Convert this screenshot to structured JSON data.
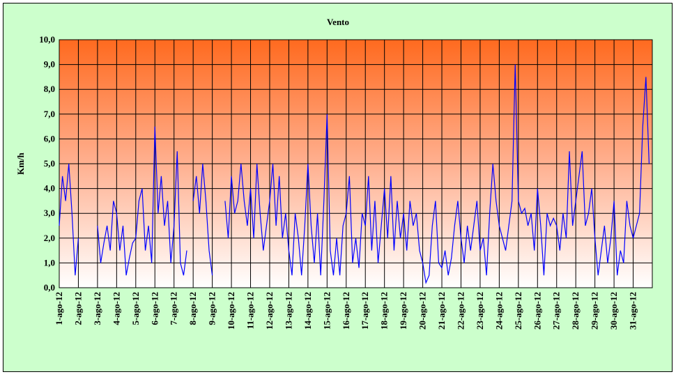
{
  "chart_data": {
    "type": "line",
    "title": "Vento",
    "y_label": "Km/h",
    "color": "#0000ff",
    "categories": [
      "1-ago-12",
      null,
      null,
      null,
      null,
      null,
      "2-ago-12",
      null,
      null,
      null,
      null,
      null,
      "3-ago-12",
      null,
      null,
      null,
      null,
      null,
      "4-ago-12",
      null,
      null,
      null,
      null,
      null,
      "5-ago-12",
      null,
      null,
      null,
      null,
      null,
      "6-ago-12",
      null,
      null,
      null,
      null,
      null,
      "7-ago-12",
      null,
      null,
      null,
      null,
      null,
      "8-ago-12",
      null,
      null,
      null,
      null,
      null,
      "9-ago-12",
      null,
      null,
      null,
      null,
      null,
      "10-ago-12",
      null,
      null,
      null,
      null,
      null,
      "11-ago-12",
      null,
      null,
      null,
      null,
      null,
      "12-ago-12",
      null,
      null,
      null,
      null,
      null,
      "13-ago-12",
      null,
      null,
      null,
      null,
      null,
      "14-ago-12",
      null,
      null,
      null,
      null,
      null,
      "15-ago-12",
      null,
      null,
      null,
      null,
      null,
      "16-ago-12",
      null,
      null,
      null,
      null,
      null,
      "17-ago-12",
      null,
      null,
      null,
      null,
      null,
      "18-ago-12",
      null,
      null,
      null,
      null,
      null,
      "19-ago-12",
      null,
      null,
      null,
      null,
      null,
      "20-ago-12",
      null,
      null,
      null,
      null,
      null,
      "21-ago-12",
      null,
      null,
      null,
      null,
      null,
      "22-ago-12",
      null,
      null,
      null,
      null,
      null,
      "23-ago-12",
      null,
      null,
      null,
      null,
      null,
      "24-ago-12",
      null,
      null,
      null,
      null,
      null,
      "25-ago-12",
      null,
      null,
      null,
      null,
      null,
      "26-ago-12",
      null,
      null,
      null,
      null,
      null,
      "27-ago-12",
      null,
      null,
      null,
      null,
      null,
      "28-ago-12",
      null,
      null,
      null,
      null,
      null,
      "29-ago-12",
      null,
      null,
      null,
      null,
      null,
      "30-ago-12",
      null,
      null,
      null,
      null,
      null,
      "31-ago-12",
      null,
      null,
      null,
      null,
      null
    ],
    "values": [
      2.5,
      4.5,
      3.5,
      5.0,
      3.0,
      0.5,
      2.0,
      null,
      null,
      null,
      null,
      null,
      2.5,
      1.0,
      1.8,
      2.5,
      1.5,
      3.5,
      3.0,
      1.5,
      2.5,
      0.5,
      1.2,
      1.8,
      2.0,
      3.5,
      4.0,
      1.5,
      2.5,
      1.0,
      6.5,
      3.0,
      4.5,
      2.5,
      3.5,
      1.0,
      2.5,
      5.5,
      1.0,
      0.5,
      1.5,
      null,
      3.5,
      4.5,
      3.0,
      5.0,
      3.5,
      1.5,
      0.5,
      null,
      null,
      null,
      3.5,
      2.0,
      4.5,
      3.0,
      3.5,
      5.0,
      3.5,
      2.5,
      4.0,
      2.0,
      5.0,
      3.0,
      1.5,
      2.5,
      3.5,
      5.0,
      2.5,
      4.5,
      2.0,
      3.0,
      1.5,
      0.5,
      3.0,
      2.0,
      0.5,
      2.5,
      5.0,
      2.5,
      1.0,
      3.0,
      0.5,
      3.5,
      7.0,
      1.5,
      0.5,
      2.0,
      0.5,
      2.5,
      3.0,
      4.5,
      1.0,
      2.0,
      0.8,
      3.0,
      2.5,
      4.5,
      1.5,
      3.5,
      1.0,
      2.5,
      4.0,
      2.0,
      4.5,
      1.5,
      3.5,
      2.0,
      3.0,
      1.5,
      3.5,
      2.5,
      3.0,
      1.5,
      1.0,
      0.2,
      0.5,
      2.5,
      3.5,
      1.0,
      0.8,
      1.5,
      0.5,
      1.2,
      2.5,
      3.5,
      2.0,
      1.0,
      2.5,
      1.5,
      2.5,
      3.5,
      1.5,
      2.0,
      0.5,
      3.0,
      5.0,
      3.5,
      2.5,
      2.0,
      1.5,
      2.5,
      3.5,
      9.0,
      3.5,
      3.0,
      3.2,
      2.5,
      3.0,
      1.5,
      4.0,
      2.5,
      0.5,
      3.0,
      2.5,
      2.8,
      2.5,
      1.5,
      3.0,
      2.0,
      5.5,
      2.5,
      3.5,
      4.5,
      5.5,
      2.5,
      3.0,
      4.0,
      2.0,
      0.5,
      1.5,
      2.5,
      1.0,
      2.0,
      3.5,
      0.5,
      1.5,
      1.0,
      3.5,
      2.5,
      2.0,
      2.5,
      3.0,
      6.5,
      8.5,
      5.0
    ],
    "ylim": [
      0,
      10
    ],
    "yticks": [
      {
        "value": 0,
        "label": "0,0"
      },
      {
        "value": 1,
        "label": "1,0"
      },
      {
        "value": 2,
        "label": "2,0"
      },
      {
        "value": 3,
        "label": "3,0"
      },
      {
        "value": 4,
        "label": "4,0"
      },
      {
        "value": 5,
        "label": "5,0"
      },
      {
        "value": 6,
        "label": "6,0"
      },
      {
        "value": 7,
        "label": "7,0"
      },
      {
        "value": 8,
        "label": "8,0"
      },
      {
        "value": 9,
        "label": "9,0"
      },
      {
        "value": 10,
        "label": "10,0"
      }
    ],
    "grid": true
  }
}
